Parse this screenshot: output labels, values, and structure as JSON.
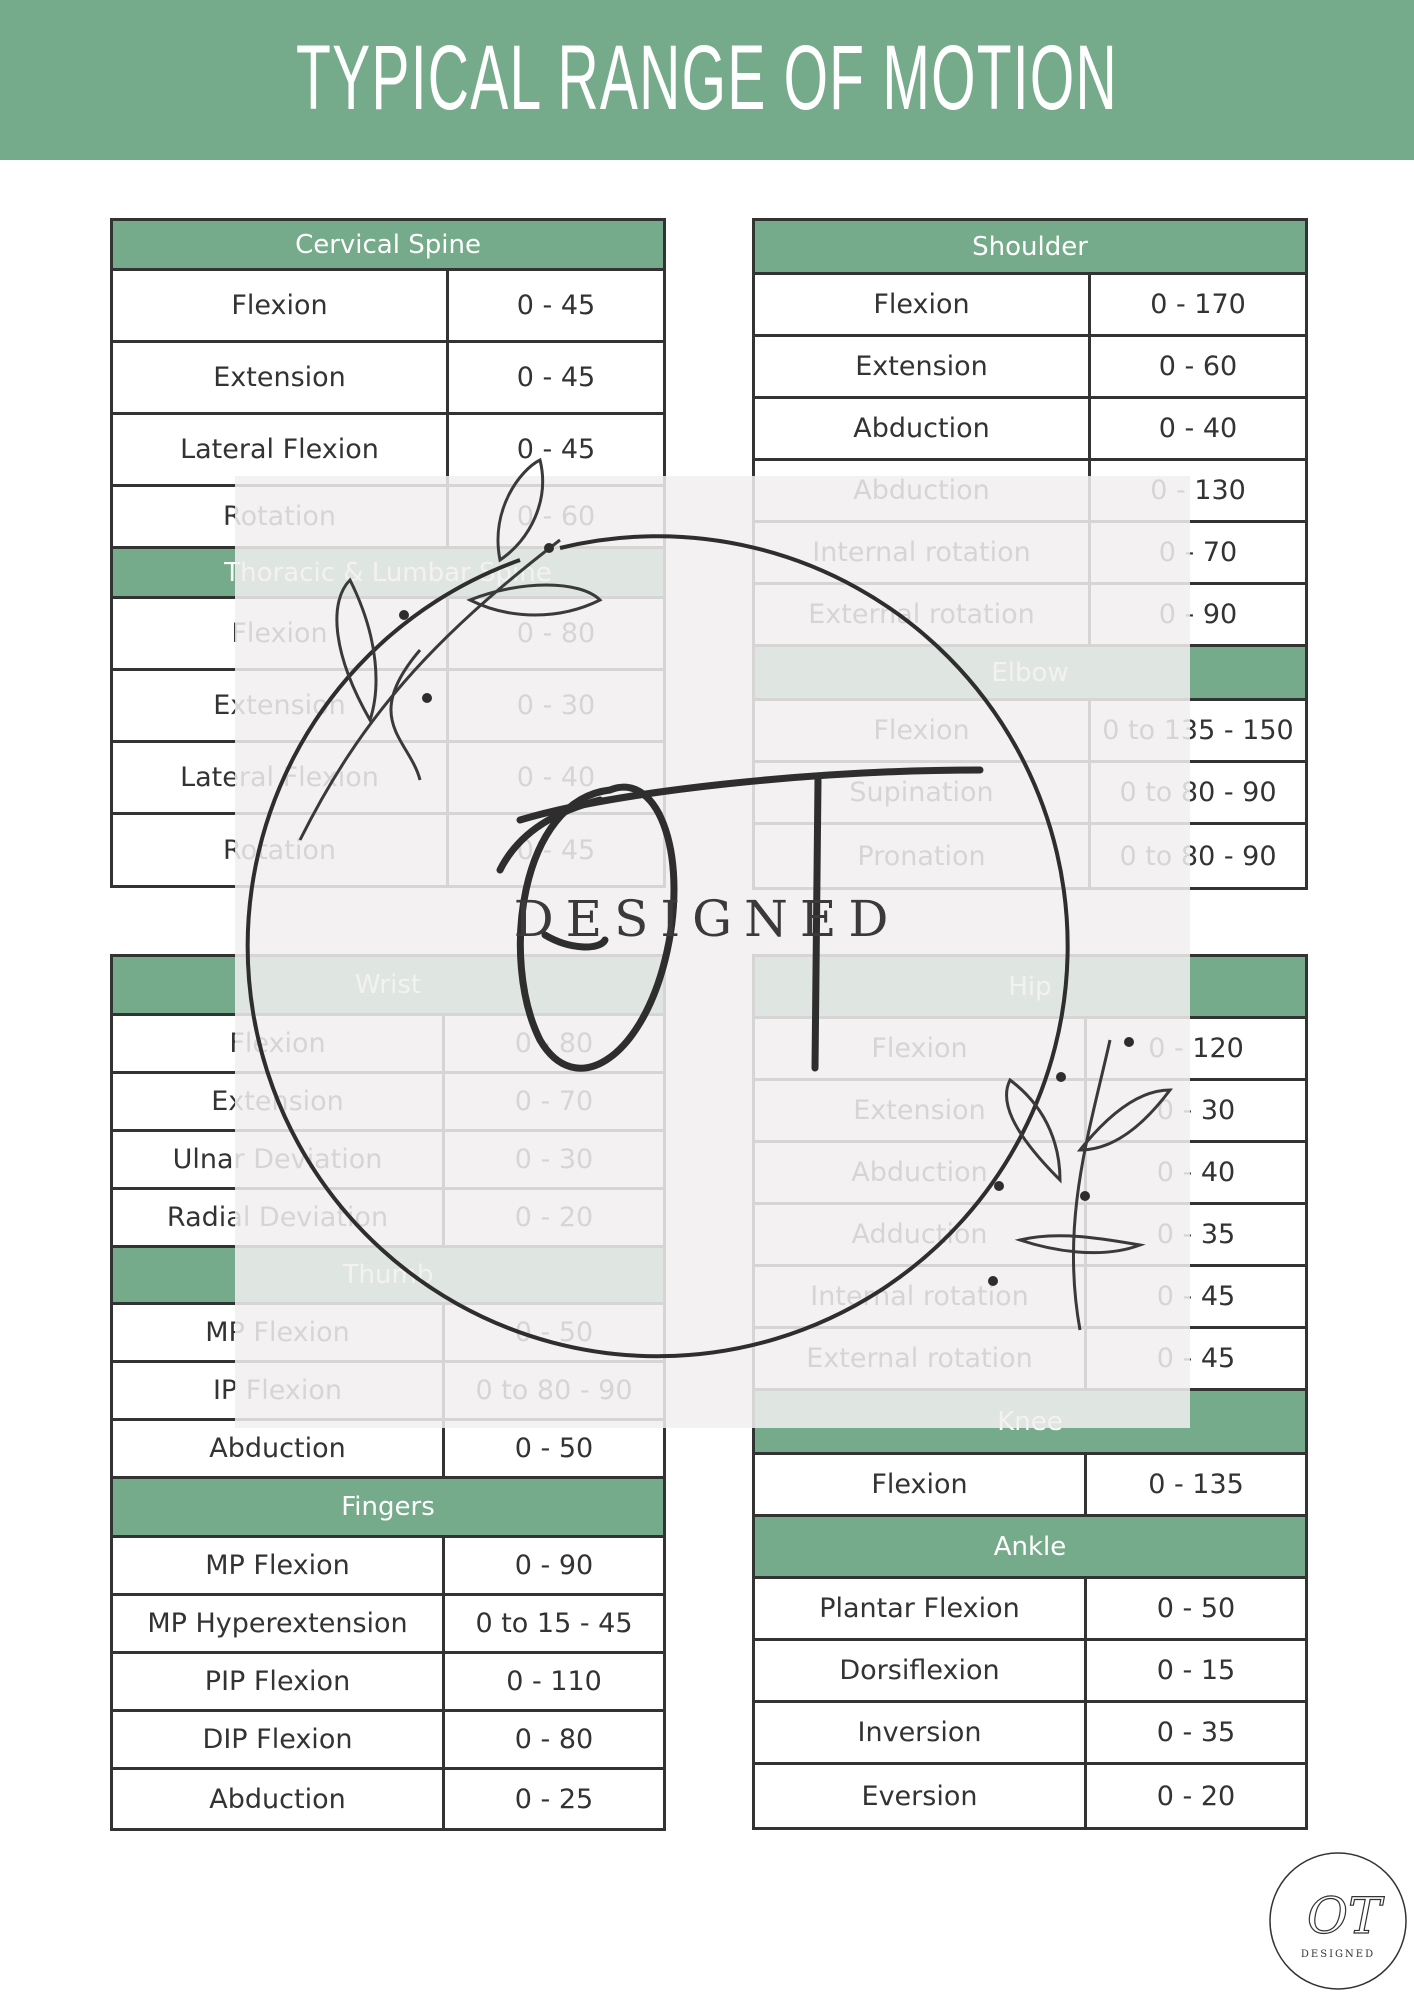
{
  "header": {
    "title": "Typical range of motion"
  },
  "tables": [
    {
      "sections": [
        {
          "title": "Cervical Spine",
          "rows": [
            [
              "Flexion",
              "0 - 45"
            ],
            [
              "Extension",
              "0 - 45"
            ],
            [
              "Lateral Flexion",
              "0 - 45"
            ],
            [
              "Rotation",
              "0 - 60"
            ]
          ]
        },
        {
          "title": "Thoracic & Lumbar Spine",
          "rows": [
            [
              "Flexion",
              "0 - 80"
            ],
            [
              "Extension",
              "0 - 30"
            ],
            [
              "Lateral Flexion",
              "0 - 40"
            ],
            [
              "Rotation",
              "0 - 45"
            ]
          ]
        }
      ]
    },
    {
      "sections": [
        {
          "title": "Shoulder",
          "rows": [
            [
              "Flexion",
              "0 - 170"
            ],
            [
              "Extension",
              "0 - 60"
            ],
            [
              "Abduction",
              "0 - 40"
            ],
            [
              "Abduction",
              "0 - 130"
            ],
            [
              "Internal rotation",
              "0 - 70"
            ],
            [
              "External rotation",
              "0 - 90"
            ]
          ]
        },
        {
          "title": "Elbow",
          "rows": [
            [
              "Flexion",
              "0 to 135 - 150"
            ],
            [
              "Supination",
              "0 to 80 - 90"
            ],
            [
              "Pronation",
              "0 to 80 - 90"
            ]
          ]
        }
      ]
    },
    {
      "sections": [
        {
          "title": "Wrist",
          "rows": [
            [
              "Flexion",
              "0 - 80"
            ],
            [
              "Extension",
              "0 - 70"
            ],
            [
              "Ulnar Deviation",
              "0 - 30"
            ],
            [
              "Radial Deviation",
              "0 - 20"
            ]
          ]
        },
        {
          "title": "Thumb",
          "rows": [
            [
              "MP Flexion",
              "0 - 50"
            ],
            [
              "IP Flexion",
              "0 to 80 - 90"
            ],
            [
              "Abduction",
              "0 - 50"
            ]
          ]
        },
        {
          "title": "Fingers",
          "rows": [
            [
              "MP Flexion",
              "0 - 90"
            ],
            [
              "MP Hyperextension",
              "0 to 15 - 45"
            ],
            [
              "PIP Flexion",
              "0 - 110"
            ],
            [
              "DIP Flexion",
              "0 - 80"
            ],
            [
              "Abduction",
              "0 - 25"
            ]
          ]
        }
      ]
    },
    {
      "sections": [
        {
          "title": "Hip",
          "rows": [
            [
              "Flexion",
              "0 - 120"
            ],
            [
              "Extension",
              "0 - 30"
            ],
            [
              "Abduction",
              "0 - 40"
            ],
            [
              "Adduction",
              "0 - 35"
            ],
            [
              "Internal rotation",
              "0 - 45"
            ],
            [
              "External rotation",
              "0 - 45"
            ]
          ]
        },
        {
          "title": "Knee",
          "rows": [
            [
              "Flexion",
              "0 - 135"
            ]
          ]
        },
        {
          "title": "Ankle",
          "rows": [
            [
              "Plantar Flexion",
              "0 - 50"
            ],
            [
              "Dorsiflexion",
              "0 - 15"
            ],
            [
              "Inversion",
              "0 - 35"
            ],
            [
              "Eversion",
              "0 - 20"
            ]
          ]
        }
      ]
    }
  ],
  "watermark": {
    "logo_text": "OT",
    "logo_subtext": "DESIGNED"
  },
  "colors": {
    "accent": "#75ab8a",
    "border": "#333333"
  }
}
